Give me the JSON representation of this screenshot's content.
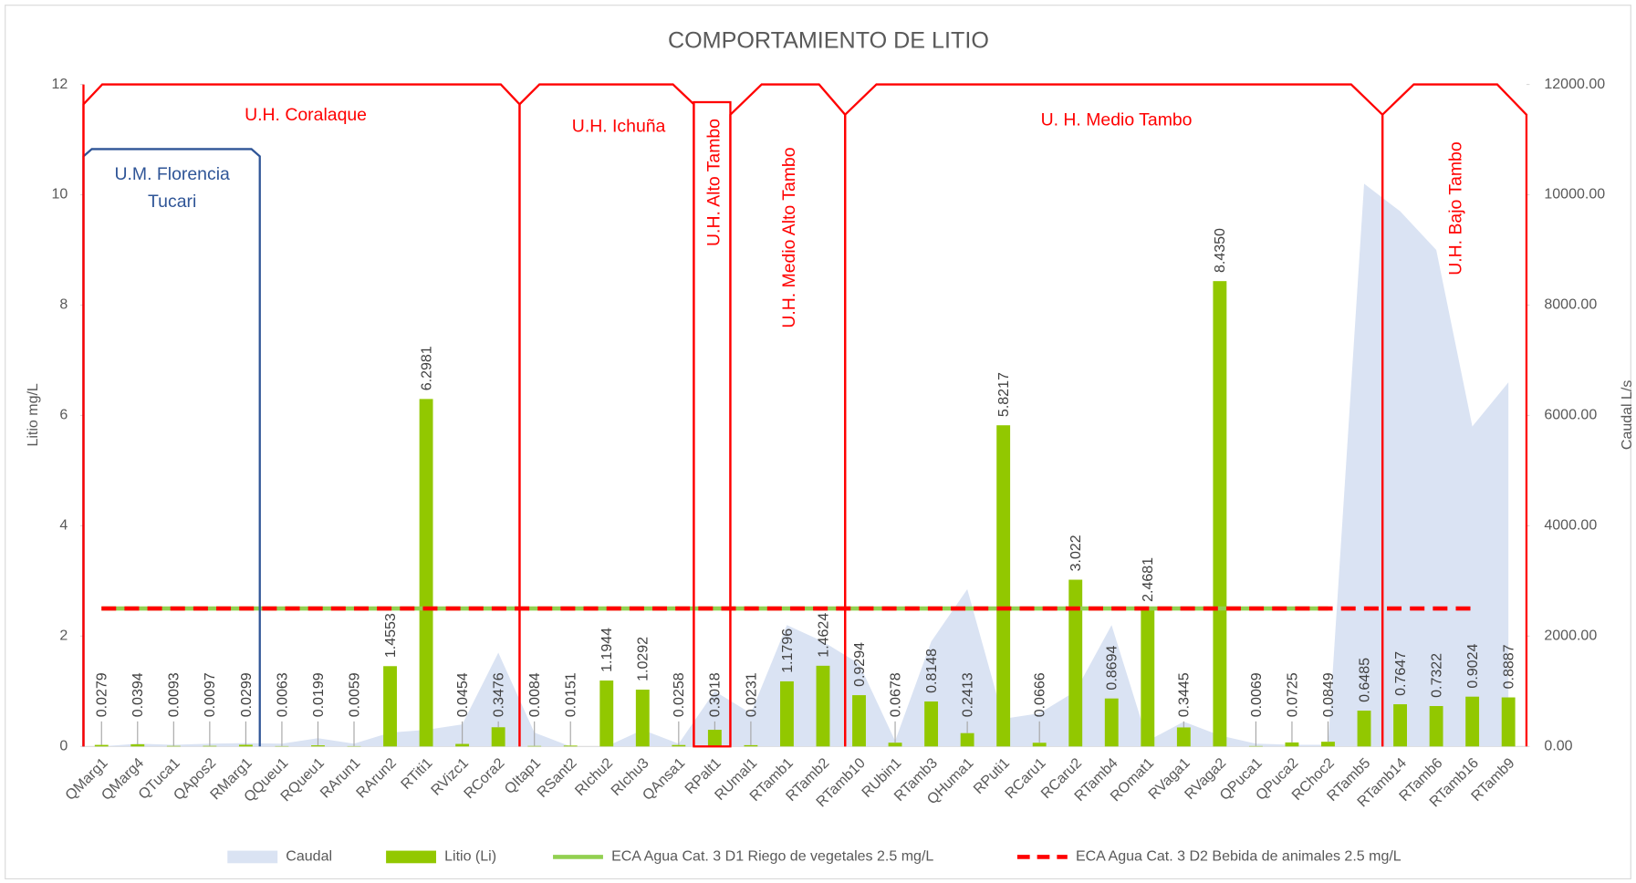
{
  "chart_data": {
    "type": "combo",
    "title": "COMPORTAMIENTO DE LITIO",
    "y_label": "Litio mg/L",
    "y2_label": "Caudal L/s",
    "categories": [
      "QMarg1",
      "QMarg4",
      "QTuca1",
      "QApos2",
      "RMarg1",
      "QQueu1",
      "RQueu1",
      "RArun1",
      "RArun2",
      "RTiti1",
      "RVizc1",
      "RCora2",
      "QItap1",
      "RSant2",
      "RIchu2",
      "RIchu3",
      "QAnsa1",
      "RPalt1",
      "RUmal1",
      "RTamb1",
      "RTamb2",
      "RTamb10",
      "RUbin1",
      "RTamb3",
      "QHuma1",
      "RPuti1",
      "RCaru1",
      "RCaru2",
      "RTamb4",
      "ROmat1",
      "RVaga1",
      "RVaga2",
      "QPuca1",
      "QPuca2",
      "RChoc2",
      "RTamb5",
      "RTamb14",
      "RTamb6",
      "RTamb16",
      "RTamb9"
    ],
    "series": [
      {
        "name": "Caudal",
        "type": "area",
        "axis": "y2",
        "color": "#dae3f3",
        "values": [
          0,
          50,
          30,
          50,
          60,
          50,
          150,
          50,
          250,
          300,
          400,
          1700,
          250,
          0,
          0,
          300,
          50,
          1000,
          600,
          2200,
          1900,
          1500,
          100,
          1900,
          2850,
          500,
          600,
          1000,
          2200,
          100,
          450,
          200,
          50,
          30,
          30,
          10200,
          9700,
          9000,
          5800,
          6600
        ]
      },
      {
        "name": "Litio (Li)",
        "type": "bar",
        "color": "#92c800",
        "values": [
          0.0279,
          0.0394,
          0.0093,
          0.0097,
          0.0299,
          0.0063,
          0.0199,
          0.0059,
          1.4553,
          6.2981,
          0.0454,
          0.3476,
          0.0084,
          0.0151,
          1.1944,
          1.0292,
          0.0258,
          0.3018,
          0.0231,
          1.1796,
          1.4624,
          0.9294,
          0.0678,
          0.8148,
          0.2413,
          5.8217,
          0.0666,
          3.022,
          0.8694,
          2.4681,
          0.3445,
          8.435,
          0.0069,
          0.0725,
          0.0849,
          0.6485,
          0.7647,
          0.7322,
          0.9024,
          0.8887
        ],
        "value_labels": [
          "0.0279",
          "0.0394",
          "0.0093",
          "0.0097",
          "0.0299",
          "0.0063",
          "0.0199",
          "0.0059",
          "1.4553",
          "6.2981",
          "0.0454",
          "0.3476",
          "0.0084",
          "0.0151",
          "1.1944",
          "1.0292",
          "0.0258",
          "0.3018",
          "0.0231",
          "1.1796",
          "1.4624",
          "0.9294",
          "0.0678",
          "0.8148",
          "0.2413",
          "5.8217",
          "0.0666",
          "3.022",
          "0.8694",
          "2.4681",
          "0.3445",
          "8.4350",
          "0.0069",
          "0.0725",
          "0.0849",
          "0.6485",
          "0.7647",
          "0.7322",
          "0.9024",
          "0.8887"
        ]
      },
      {
        "name": "ECA Agua Cat. 3 D1 Riego de vegetales 2.5 mg/L",
        "type": "line",
        "color": "#92d050",
        "values": [
          2.5,
          2.5,
          2.5,
          2.5,
          2.5,
          2.5,
          2.5,
          2.5,
          2.5,
          2.5,
          2.5,
          2.5,
          2.5,
          2.5,
          2.5,
          2.5,
          2.5,
          2.5,
          2.5,
          2.5,
          2.5,
          2.5,
          2.5,
          2.5,
          2.5,
          2.5,
          2.5,
          2.5,
          2.5,
          2.5,
          2.5,
          2.5,
          2.5,
          2.5,
          2.5,
          null,
          null,
          null,
          null,
          null
        ]
      },
      {
        "name": "ECA Agua Cat. 3 D2 Bebida de animales 2.5 mg/L",
        "type": "line",
        "dashed": true,
        "color": "#ff0000",
        "values": [
          2.5,
          2.5,
          2.5,
          2.5,
          2.5,
          2.5,
          2.5,
          2.5,
          2.5,
          2.5,
          2.5,
          2.5,
          2.5,
          2.5,
          2.5,
          2.5,
          2.5,
          2.5,
          2.5,
          2.5,
          2.5,
          2.5,
          2.5,
          2.5,
          2.5,
          2.5,
          2.5,
          2.5,
          2.5,
          2.5,
          2.5,
          2.5,
          2.5,
          2.5,
          2.5,
          2.5,
          2.5,
          2.5,
          2.5,
          null
        ]
      }
    ],
    "ylim": [
      0,
      12
    ],
    "yticks": [
      0,
      2,
      4,
      6,
      8,
      10,
      12
    ],
    "y2lim": [
      0,
      12000
    ],
    "y2ticks": [
      {
        "value": 0,
        "label": "0.00"
      },
      {
        "value": 2000,
        "label": "2000.00"
      },
      {
        "value": 4000,
        "label": "4000.00"
      },
      {
        "value": 6000,
        "label": "6000.00"
      },
      {
        "value": 8000,
        "label": "8000.00"
      },
      {
        "value": 10000,
        "label": "10000.00"
      },
      {
        "value": 12000,
        "label": "12000.00"
      }
    ],
    "legend": "bottom",
    "annotations": [
      "U.H. Coralaque",
      "U.M. Florencia",
      "Tucari",
      "U.H. Ichuña",
      "U.H. Alto Tambo",
      "U.H. Medio Alto Tambo",
      "U. H. Medio Tambo",
      "U.H. Bajo Tambo"
    ]
  }
}
